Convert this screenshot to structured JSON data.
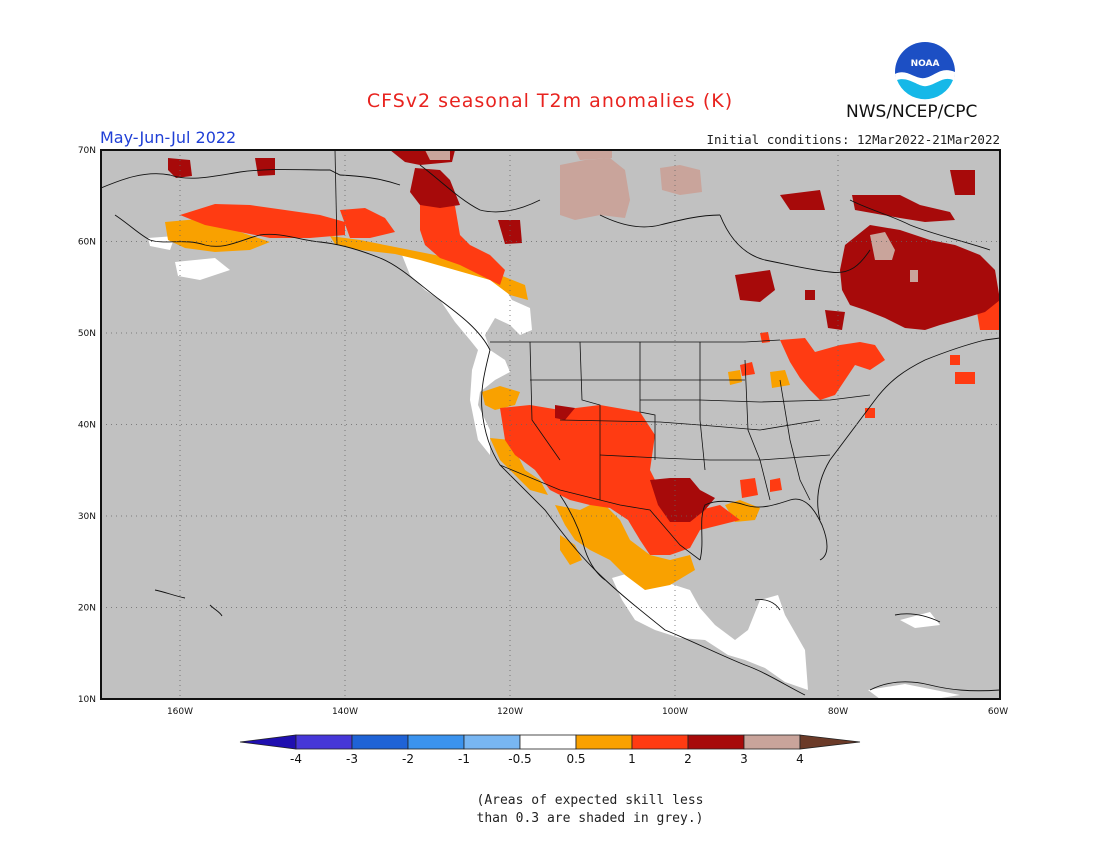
{
  "title": "CFSv2 seasonal T2m anomalies (K)",
  "agency": "NWS/NCEP/CPC",
  "logo_text": "NOAA",
  "season": "May-Jun-Jul 2022",
  "initial_conditions": "Initial conditions: 12Mar2022-21Mar2022",
  "skill_note": "(Areas of expected skill less\nthan 0.3 are shaded in grey.)",
  "lat_labels": [
    "70N",
    "60N",
    "50N",
    "40N",
    "30N",
    "20N",
    "10N"
  ],
  "lon_labels": [
    "160W",
    "140W",
    "120W",
    "100W",
    "80W",
    "60W"
  ],
  "colorbar": {
    "labels": [
      "-4",
      "-3",
      "-2",
      "-1",
      "-0.5",
      "0.5",
      "1",
      "2",
      "3",
      "4"
    ],
    "colors": [
      "#1f0fb0",
      "#4637d8",
      "#1f63d6",
      "#3b93ee",
      "#78b6f2",
      "#ffffff",
      "#f9a100",
      "#ff3b12",
      "#a70a0a",
      "#c9a49b",
      "#6b3a28"
    ]
  },
  "colors": {
    "grey_mask": "#c1c1c1",
    "near_zero": "#ffffff",
    "pos_05_1": "#f9a100",
    "pos_1_2": "#ff3b12",
    "pos_2_3": "#a70a0a",
    "pos_3_4": "#c9a49b"
  }
}
